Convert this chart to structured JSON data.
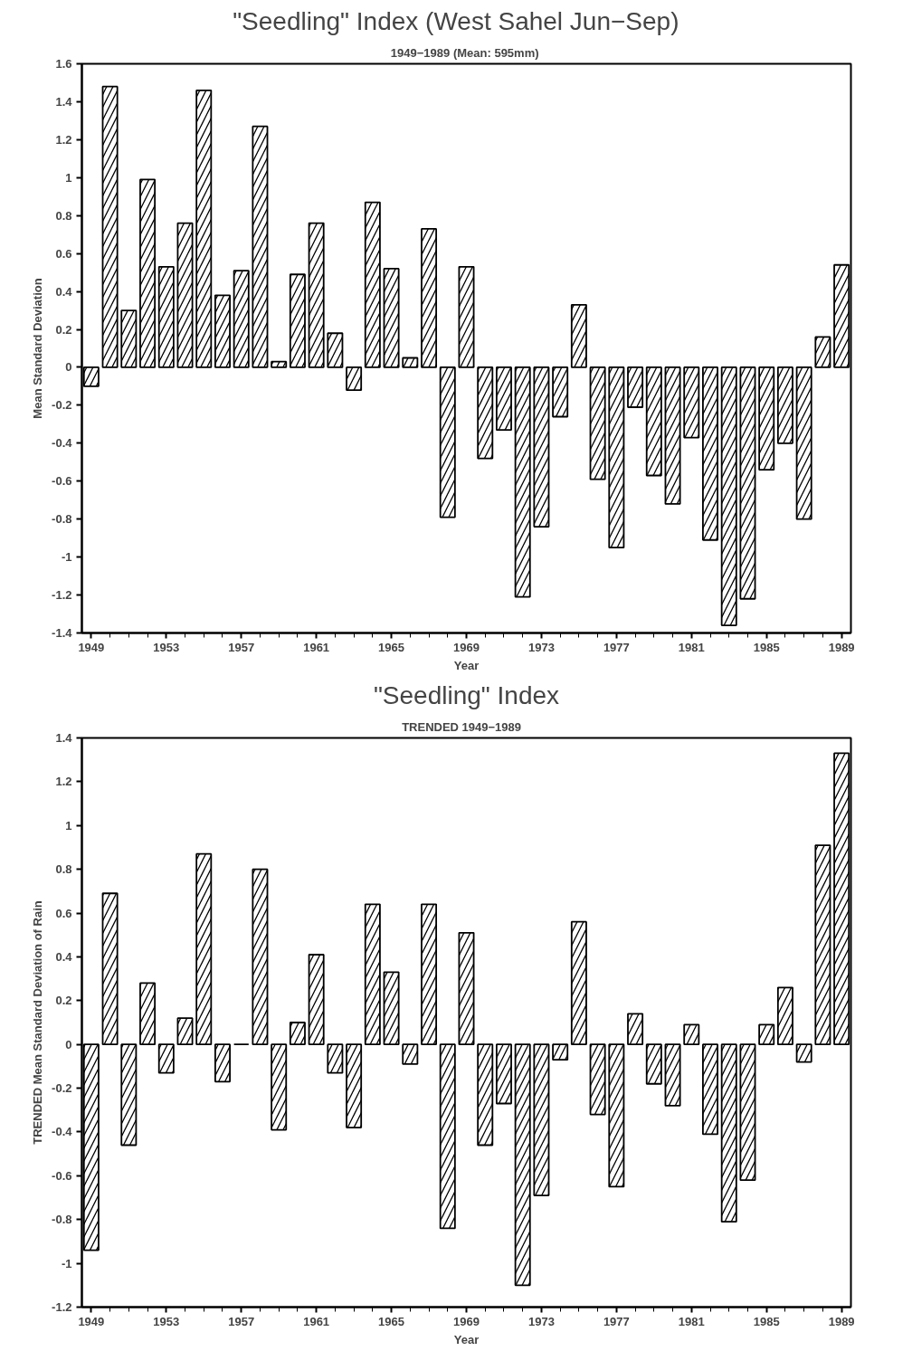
{
  "chart_data": [
    {
      "type": "bar",
      "title": "\"Seedling\" Index    (West Sahel Jun−Sep)",
      "subtitle": "1949−1989 (Mean:  595mm)",
      "xlabel": "Year",
      "ylabel": "Mean Standard Deviation",
      "categories": [
        "1949",
        null,
        null,
        null,
        "1953",
        null,
        null,
        null,
        "1957",
        null,
        null,
        null,
        "1961",
        null,
        null,
        null,
        "1965",
        null,
        null,
        null,
        "1969",
        null,
        null,
        null,
        "1973",
        null,
        null,
        null,
        "1977",
        null,
        null,
        null,
        "1981",
        null,
        null,
        null,
        "1985",
        null,
        null,
        null,
        "1989"
      ],
      "values": [
        -0.1,
        1.48,
        0.3,
        0.99,
        0.53,
        0.76,
        1.46,
        0.38,
        0.51,
        1.27,
        0.03,
        0.49,
        0.76,
        0.18,
        -0.12,
        0.87,
        0.52,
        0.05,
        0.73,
        -0.79,
        0.53,
        -0.48,
        -0.33,
        -1.21,
        -0.84,
        -0.26,
        0.33,
        -0.59,
        -0.95,
        -0.21,
        -0.57,
        -0.72,
        -0.37,
        -0.91,
        -1.36,
        -1.22,
        -0.54,
        -0.4,
        -0.8,
        0.16,
        0.54
      ],
      "color": "#000000",
      "ylim": [
        -1.4,
        1.6
      ],
      "yticks": [
        -1.4,
        -1.2,
        -1,
        -0.8,
        -0.6,
        -0.4,
        -0.2,
        0,
        0.2,
        0.4,
        0.6,
        0.8,
        1,
        1.2,
        1.4,
        1.6
      ],
      "grid": false
    },
    {
      "type": "bar",
      "title": "\"Seedling\" Index",
      "subtitle": "TRENDED    1949−1989",
      "xlabel": "Year",
      "ylabel": "TRENDED Mean Standard Deviation of Rain",
      "categories": [
        "1949",
        null,
        null,
        null,
        "1953",
        null,
        null,
        null,
        "1957",
        null,
        null,
        null,
        "1961",
        null,
        null,
        null,
        "1965",
        null,
        null,
        null,
        "1969",
        null,
        null,
        null,
        "1973",
        null,
        null,
        null,
        "1977",
        null,
        null,
        null,
        "1981",
        null,
        null,
        null,
        "1985",
        null,
        null,
        null,
        "1989"
      ],
      "values": [
        -0.94,
        0.69,
        -0.46,
        0.28,
        -0.13,
        0.12,
        0.87,
        -0.17,
        0,
        0.8,
        -0.39,
        0.1,
        0.41,
        -0.13,
        -0.38,
        0.64,
        0.33,
        -0.09,
        0.64,
        -0.84,
        0.51,
        -0.46,
        -0.27,
        -1.1,
        -0.69,
        -0.07,
        0.56,
        -0.32,
        -0.65,
        0.14,
        -0.18,
        -0.28,
        0.09,
        -0.41,
        -0.81,
        -0.62,
        0.09,
        0.26,
        -0.08,
        0.91,
        1.33
      ],
      "color": "#000000",
      "ylim": [
        -1.2,
        1.4
      ],
      "yticks": [
        -1.2,
        -1,
        -0.8,
        -0.6,
        -0.4,
        -0.2,
        0,
        0.2,
        0.4,
        0.6,
        0.8,
        1,
        1.2,
        1.4
      ],
      "grid": false
    }
  ]
}
